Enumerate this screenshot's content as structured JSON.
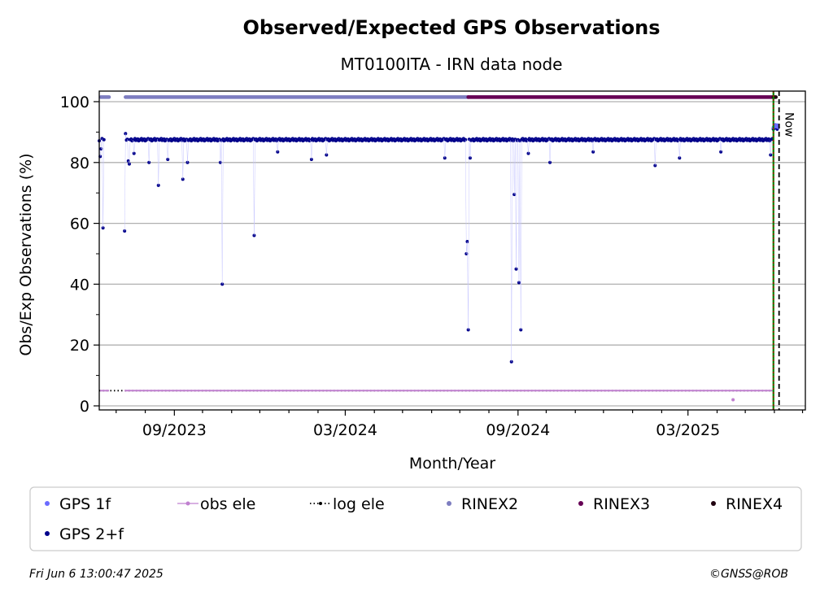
{
  "chart_data": {
    "type": "scatter",
    "title": "Observed/Expected GPS Observations",
    "subtitle": "MT0100ITA - IRN data node",
    "xlabel": "Month/Year",
    "ylabel": "Obs/Exp Observations (%)",
    "ylim": [
      0,
      100
    ],
    "yticks": [
      0,
      20,
      40,
      60,
      80,
      100
    ],
    "xticks": [
      "09/2023",
      "03/2024",
      "09/2024",
      "03/2025"
    ],
    "x_range": [
      "2023-06-13",
      "2025-07-04"
    ],
    "grid": true,
    "now_label": "Now",
    "now_date": "2025-06-06",
    "legend_location": "bottom",
    "series": [
      {
        "name": "GPS 1f",
        "color": "#6b6bff",
        "type": "scatter",
        "points": [
          [
            "2025-05-31",
            91.5
          ],
          [
            "2025-06-01",
            92.0
          ],
          [
            "2025-06-02",
            92.4
          ],
          [
            "2025-06-03",
            91.8
          ],
          [
            "2025-06-04",
            92.3
          ],
          [
            "2025-06-05",
            91.6
          ]
        ]
      },
      {
        "name": "GPS 2+f",
        "color": "#00008b",
        "type": "scatter",
        "baseline": 87.5,
        "date_start": "2023-06-13",
        "date_end": "2025-05-30",
        "outliers": [
          [
            "2023-06-14",
            82.0
          ],
          [
            "2023-06-15",
            84.5
          ],
          [
            "2023-06-17",
            58.5
          ],
          [
            "2023-07-10",
            57.5
          ],
          [
            "2023-07-11",
            89.5
          ],
          [
            "2023-07-14",
            80.5
          ],
          [
            "2023-07-15",
            79.5
          ],
          [
            "2023-07-20",
            83.0
          ],
          [
            "2023-08-05",
            80.0
          ],
          [
            "2023-08-15",
            72.5
          ],
          [
            "2023-08-25",
            81.0
          ],
          [
            "2023-09-10",
            74.5
          ],
          [
            "2023-09-15",
            80.0
          ],
          [
            "2023-10-20",
            80.0
          ],
          [
            "2023-10-22",
            40.0
          ],
          [
            "2023-11-25",
            56.0
          ],
          [
            "2023-12-20",
            83.5
          ],
          [
            "2024-01-25",
            81.0
          ],
          [
            "2024-02-10",
            82.5
          ],
          [
            "2024-06-15",
            81.5
          ],
          [
            "2024-07-08",
            50.0
          ],
          [
            "2024-07-09",
            54.0
          ],
          [
            "2024-07-10",
            25.0
          ],
          [
            "2024-07-12",
            81.5
          ],
          [
            "2024-08-25",
            14.5
          ],
          [
            "2024-08-28",
            69.5
          ],
          [
            "2024-08-30",
            45.0
          ],
          [
            "2024-09-02",
            40.5
          ],
          [
            "2024-09-04",
            25.0
          ],
          [
            "2024-09-12",
            83.0
          ],
          [
            "2024-10-05",
            80.0
          ],
          [
            "2024-11-20",
            83.5
          ],
          [
            "2025-01-25",
            79.0
          ],
          [
            "2025-02-20",
            81.5
          ],
          [
            "2025-04-05",
            83.5
          ],
          [
            "2025-05-28",
            82.5
          ],
          [
            "2025-05-31",
            91.0
          ],
          [
            "2025-06-02",
            91.5
          ],
          [
            "2025-06-04",
            91.0
          ]
        ]
      },
      {
        "name": "obs ele",
        "color": "#c080d0",
        "type": "line",
        "value": 5,
        "date_start": "2023-07-10",
        "date_end": "2025-05-30",
        "outliers": [
          [
            "2025-04-18",
            2.0
          ]
        ]
      },
      {
        "name": "log ele",
        "color": "#000000",
        "type": "dotted-line",
        "value": 5,
        "date_start": "2023-06-13",
        "date_end": "2025-05-31"
      },
      {
        "name": "RINEX2",
        "color": "#7d7dc0",
        "type": "band",
        "value": 101.5,
        "date_start": "2023-07-11",
        "date_end": "2024-07-10"
      },
      {
        "name": "RINEX3",
        "color": "#660055",
        "type": "band",
        "value": 101.5,
        "date_start": "2024-07-10",
        "date_end": "2025-05-31"
      },
      {
        "name": "RINEX4",
        "color": "#200010",
        "type": "band",
        "value": 101.5,
        "date_start": "2025-05-31",
        "date_end": "2025-05-31"
      }
    ],
    "vlines": [
      {
        "date": "2025-05-31",
        "colors": [
          "#008000",
          "#cc0000"
        ]
      },
      {
        "date": "2025-06-06",
        "colors": [
          "#000000"
        ],
        "dashed": true
      }
    ]
  },
  "legend": {
    "items": [
      {
        "label": "GPS 1f",
        "color": "#6b6bff",
        "kind": "dot"
      },
      {
        "label": "obs ele",
        "color": "#c080d0",
        "kind": "line-dot"
      },
      {
        "label": "log ele",
        "color": "#000000",
        "kind": "dotted"
      },
      {
        "label": "RINEX2",
        "color": "#7d7dc0",
        "kind": "dot"
      },
      {
        "label": "RINEX3",
        "color": "#660055",
        "kind": "dot"
      },
      {
        "label": "RINEX4",
        "color": "#200010",
        "kind": "dot"
      },
      {
        "label": "GPS 2+f",
        "color": "#00008b",
        "kind": "dot"
      }
    ]
  },
  "footer": {
    "timestamp": "Fri Jun  6 13:00:47 2025",
    "credit": "©GNSS@ROB"
  }
}
